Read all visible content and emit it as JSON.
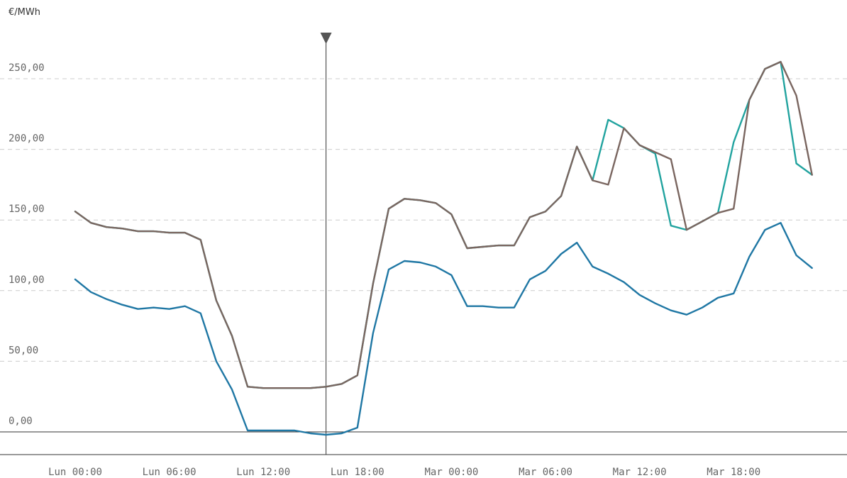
{
  "chart_data": {
    "type": "line",
    "unit_label": "€/MWh",
    "ylim": [
      -20,
      260
    ],
    "y_ticks": [
      0,
      50,
      100,
      150,
      200,
      250
    ],
    "y_tick_labels": [
      "0,00",
      "50,00",
      "100,00",
      "150,00",
      "200,00",
      "250,00"
    ],
    "x_range_hours": [
      -1,
      49
    ],
    "x_ticks": [
      0,
      6,
      12,
      18,
      24,
      30,
      36,
      42
    ],
    "x_tick_labels": [
      "Lun 00:00",
      "Lun 06:00",
      "Lun 12:00",
      "Lun 18:00",
      "Mar 00:00",
      "Mar 06:00",
      "Mar 12:00",
      "Mar 18:00"
    ],
    "cursor_x": 16,
    "grid": "horizontal-dashed",
    "series": [
      {
        "color": "#1f77a4",
        "x": [
          0,
          1,
          2,
          3,
          4,
          5,
          6,
          7,
          8,
          9,
          10,
          11,
          12,
          13,
          14,
          15,
          16,
          17,
          18,
          19,
          20,
          21,
          22,
          23,
          24,
          25,
          26,
          27,
          28,
          29,
          30,
          31,
          32,
          33,
          34,
          35,
          36,
          37,
          38,
          39,
          40,
          41,
          42,
          43,
          44,
          45,
          46,
          47
        ],
        "values": [
          108,
          99,
          94,
          90,
          87,
          88,
          87,
          89,
          84,
          50,
          30,
          1,
          1,
          1,
          1,
          -1,
          -2,
          -1,
          3,
          70,
          115,
          121,
          120,
          117,
          111,
          89,
          89,
          88,
          88,
          108,
          114,
          126,
          134,
          117,
          112,
          106,
          97,
          91,
          86,
          83,
          88,
          95,
          98,
          124,
          143,
          148,
          125,
          116
        ]
      },
      {
        "color": "#22a39f",
        "x": [
          0,
          1,
          2,
          3,
          4,
          5,
          6,
          7,
          8,
          9,
          10,
          11,
          12,
          13,
          14,
          15,
          16,
          17,
          18,
          19,
          20,
          21,
          22,
          23,
          24,
          25,
          26,
          27,
          28,
          29,
          30,
          31,
          32,
          33,
          34,
          35,
          36,
          37,
          38,
          39,
          40,
          41,
          42,
          43,
          44,
          45,
          46,
          47
        ],
        "values": [
          156,
          148,
          145,
          144,
          142,
          142,
          141,
          141,
          136,
          93,
          68,
          32,
          31,
          31,
          31,
          31,
          32,
          34,
          40,
          105,
          158,
          165,
          164,
          162,
          154,
          130,
          131,
          132,
          132,
          152,
          156,
          167,
          202,
          178,
          221,
          215,
          203,
          197,
          146,
          143,
          149,
          155,
          205,
          235,
          257,
          262,
          190,
          182
        ]
      },
      {
        "color": "#7a6660",
        "x": [
          0,
          1,
          2,
          3,
          4,
          5,
          6,
          7,
          8,
          9,
          10,
          11,
          12,
          13,
          14,
          15,
          16,
          17,
          18,
          19,
          20,
          21,
          22,
          23,
          24,
          25,
          26,
          27,
          28,
          29,
          30,
          31,
          32,
          33,
          34,
          35,
          36,
          37,
          38,
          39,
          40,
          41,
          42,
          43,
          44,
          45,
          46,
          47
        ],
        "values": [
          156,
          148,
          145,
          144,
          142,
          142,
          141,
          141,
          136,
          93,
          68,
          32,
          31,
          31,
          31,
          31,
          32,
          34,
          40,
          105,
          158,
          165,
          164,
          162,
          154,
          130,
          131,
          132,
          132,
          152,
          156,
          167,
          202,
          178,
          175,
          215,
          203,
          198,
          193,
          143,
          149,
          155,
          158,
          235,
          257,
          262,
          238,
          182
        ]
      }
    ]
  }
}
